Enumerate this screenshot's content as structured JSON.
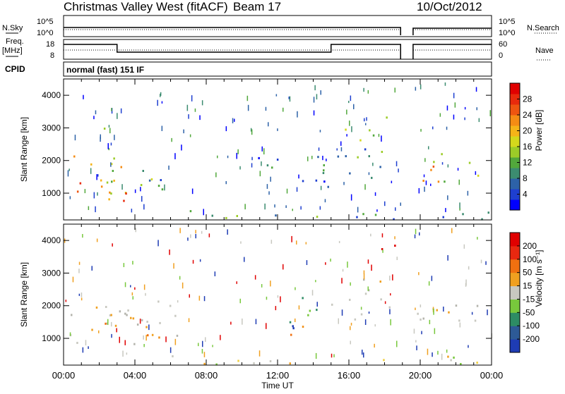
{
  "header": {
    "station": "Christmas Valley West (fitACF)",
    "beam": "Beam 17",
    "date": "10/Oct/2012"
  },
  "top_panels": {
    "nsky_label": "N.Sky",
    "nsearch_label": "N.Search",
    "noise_ticks": [
      "10^5",
      "10^0"
    ],
    "freq_label_line1": "Freq.",
    "freq_label_line2": "[MHz]",
    "freq_ticks": [
      "18",
      "8"
    ],
    "nave_ticks": [
      "60",
      "0"
    ],
    "nave_label": "Nave",
    "cpid_label": "CPID",
    "cpid_value": "normal (fast) 151 IF"
  },
  "chart_data": [
    {
      "type": "heatmap",
      "name": "Power",
      "ylabel": "Slant Range [km]",
      "xlabel": "Time UT",
      "x_ticks": [
        "00:00",
        "04:00",
        "08:00",
        "12:00",
        "16:00",
        "20:00",
        "00:00"
      ],
      "x_range_hours": [
        0,
        24
      ],
      "y_ticks": [
        1000,
        2000,
        3000,
        4000
      ],
      "y_range_km": [
        180,
        4500
      ],
      "data_gap_hours": [
        18.9,
        19.6
      ],
      "colorbar": {
        "label": "Power [dB]",
        "ticks": [
          "4",
          "8",
          "12",
          "16",
          "20",
          "24",
          "28"
        ],
        "colors": [
          "#0000ff",
          "#1e3fd0",
          "#2d62a8",
          "#3c8c70",
          "#52a83c",
          "#9ccc28",
          "#d4d81c",
          "#f5b418",
          "#f58c14",
          "#ee5510",
          "#e82a0c",
          "#e00000"
        ]
      },
      "regions": [
        {
          "t0": 0,
          "t1": 3.2,
          "r0": 700,
          "r1": 2300,
          "level": 0.65
        },
        {
          "t0": 1.2,
          "t1": 5.0,
          "r0": 900,
          "r1": 2000,
          "level": 0.45
        },
        {
          "t0": 2.0,
          "t1": 3.0,
          "r0": 2900,
          "r1": 3400,
          "level": 0.35
        },
        {
          "t0": 2.5,
          "t1": 4.5,
          "r0": 600,
          "r1": 1300,
          "level": 0.75
        },
        {
          "t0": 4.3,
          "t1": 6.1,
          "r0": 900,
          "r1": 1600,
          "level": 0.35
        },
        {
          "t0": 10.5,
          "t1": 15.0,
          "r0": 1100,
          "r1": 1500,
          "level": 0.2
        },
        {
          "t0": 10.5,
          "t1": 15.2,
          "r0": 1500,
          "r1": 2100,
          "level": 0.25
        },
        {
          "t0": 14.5,
          "t1": 18.5,
          "r0": 1300,
          "r1": 2500,
          "level": 0.25
        },
        {
          "t0": 15.5,
          "t1": 17.8,
          "r0": 2500,
          "r1": 3300,
          "level": 0.35
        },
        {
          "t0": 17.8,
          "t1": 18.6,
          "r0": 3300,
          "r1": 3900,
          "level": 0.45
        },
        {
          "t0": 19.6,
          "t1": 24,
          "r0": 1250,
          "r1": 2200,
          "level": 0.55
        },
        {
          "t0": 0,
          "t1": 24,
          "r0": 180,
          "r1": 450,
          "level": 0.3
        }
      ]
    },
    {
      "type": "heatmap",
      "name": "Velocity",
      "ylabel": "Slant Range [km]",
      "xlabel": "Time UT",
      "x_ticks": [
        "00:00",
        "04:00",
        "08:00",
        "12:00",
        "16:00",
        "20:00",
        "00:00"
      ],
      "x_range_hours": [
        0,
        24
      ],
      "y_ticks": [
        1000,
        2000,
        3000,
        4000
      ],
      "y_range_km": [
        180,
        4500
      ],
      "data_gap_hours": [
        18.9,
        19.6
      ],
      "colorbar": {
        "label": "Velocity [m s⁻¹]",
        "ticks": [
          "200",
          "100",
          "50",
          "15",
          "-15",
          "-50",
          "-100",
          "-200"
        ],
        "colors": [
          "#1e3cb4",
          "#2d5a96",
          "#2d8c64",
          "#78c83c",
          "#c8c8c0",
          "#f0a020",
          "#f07010",
          "#e82810",
          "#e00000"
        ]
      },
      "regions": [
        {
          "t0": 0,
          "t1": 6.5,
          "r0": 800,
          "r1": 2200,
          "tone": "gray"
        },
        {
          "t0": 1.5,
          "t1": 5.5,
          "r0": 1100,
          "r1": 2000,
          "tone": "orange"
        },
        {
          "t0": 4.5,
          "t1": 6.1,
          "r0": 900,
          "r1": 1400,
          "tone": "orange"
        },
        {
          "t0": 10.8,
          "t1": 13.0,
          "r0": 1100,
          "r1": 1700,
          "tone": "blue"
        },
        {
          "t0": 12.0,
          "t1": 14.5,
          "r0": 1500,
          "r1": 2300,
          "tone": "green"
        },
        {
          "t0": 12.5,
          "t1": 14.8,
          "r0": 1000,
          "r1": 1400,
          "tone": "orange"
        },
        {
          "t0": 15.0,
          "t1": 18.5,
          "r0": 1500,
          "r1": 2500,
          "tone": "gray"
        },
        {
          "t0": 16.5,
          "t1": 17.8,
          "r0": 2500,
          "r1": 3300,
          "tone": "gray"
        },
        {
          "t0": 17.5,
          "t1": 18.6,
          "r0": 3200,
          "r1": 3900,
          "tone": "red"
        },
        {
          "t0": 19.6,
          "t1": 24,
          "r0": 1200,
          "r1": 2100,
          "tone": "gray"
        },
        {
          "t0": 0,
          "t1": 24,
          "r0": 180,
          "r1": 450,
          "tone": "yellow"
        }
      ]
    }
  ]
}
